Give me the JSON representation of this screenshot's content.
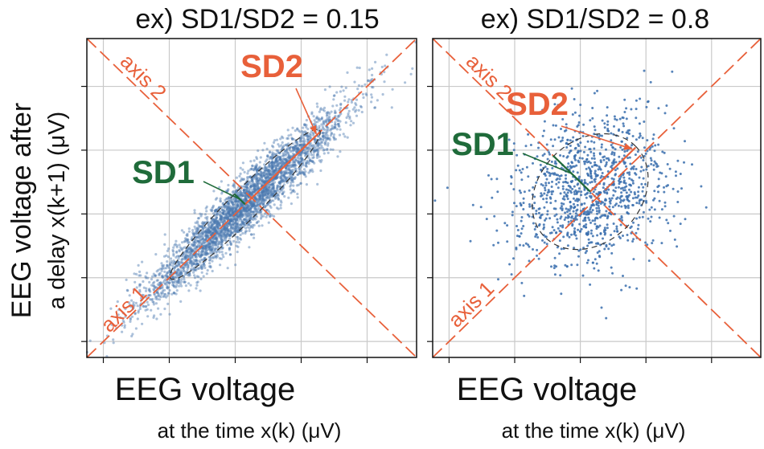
{
  "chart_data": [
    {
      "type": "scatter",
      "title": "ex) SD1/SD2 = 0.15",
      "xlabel": "EEG voltage",
      "xlabel_sub": "at the time x(k)  (μV)",
      "ylabel": "EEG voltage after",
      "ylabel_sub": "a delay x(k+1)  (μV)",
      "xlim": [
        0,
        100
      ],
      "ylim": [
        0,
        100
      ],
      "grid": true,
      "x_ticks": [
        5,
        25,
        45,
        65,
        85
      ],
      "y_ticks": [
        5,
        25,
        45,
        65,
        85
      ],
      "center": [
        48,
        48
      ],
      "sd1": 3.2,
      "sd2": 22,
      "n_points": 3500,
      "point_color": "#4a78b0",
      "ellipse_scale": 1.45,
      "annotations": {
        "axis1": "axis 1",
        "axis2": "axis 2",
        "sd1": "SD1",
        "sd2": "SD2"
      }
    },
    {
      "type": "scatter",
      "title": "ex) SD1/SD2 = 0.8",
      "xlabel": "EEG voltage",
      "xlabel_sub": "at the time x(k)  (μV)",
      "xlim": [
        0,
        100
      ],
      "ylim": [
        0,
        100
      ],
      "grid": true,
      "x_ticks": [
        5,
        25,
        45,
        65,
        85
      ],
      "y_ticks": [
        5,
        25,
        45,
        65,
        85
      ],
      "center": [
        48,
        52
      ],
      "sd1": 11,
      "sd2": 13.5,
      "n_points": 1100,
      "point_color": "#3a6eae",
      "ellipse_scale": 1.45,
      "annotations": {
        "axis1": "axis 1",
        "axis2": "axis 2",
        "sd1": "SD1",
        "sd2": "SD2"
      }
    }
  ],
  "colors": {
    "axis_line": "#e8603a",
    "sd1_label": "#1f6b3a",
    "sd2_label": "#e8603a",
    "grid": "#c9c9c9",
    "ellipse": "#333333"
  }
}
